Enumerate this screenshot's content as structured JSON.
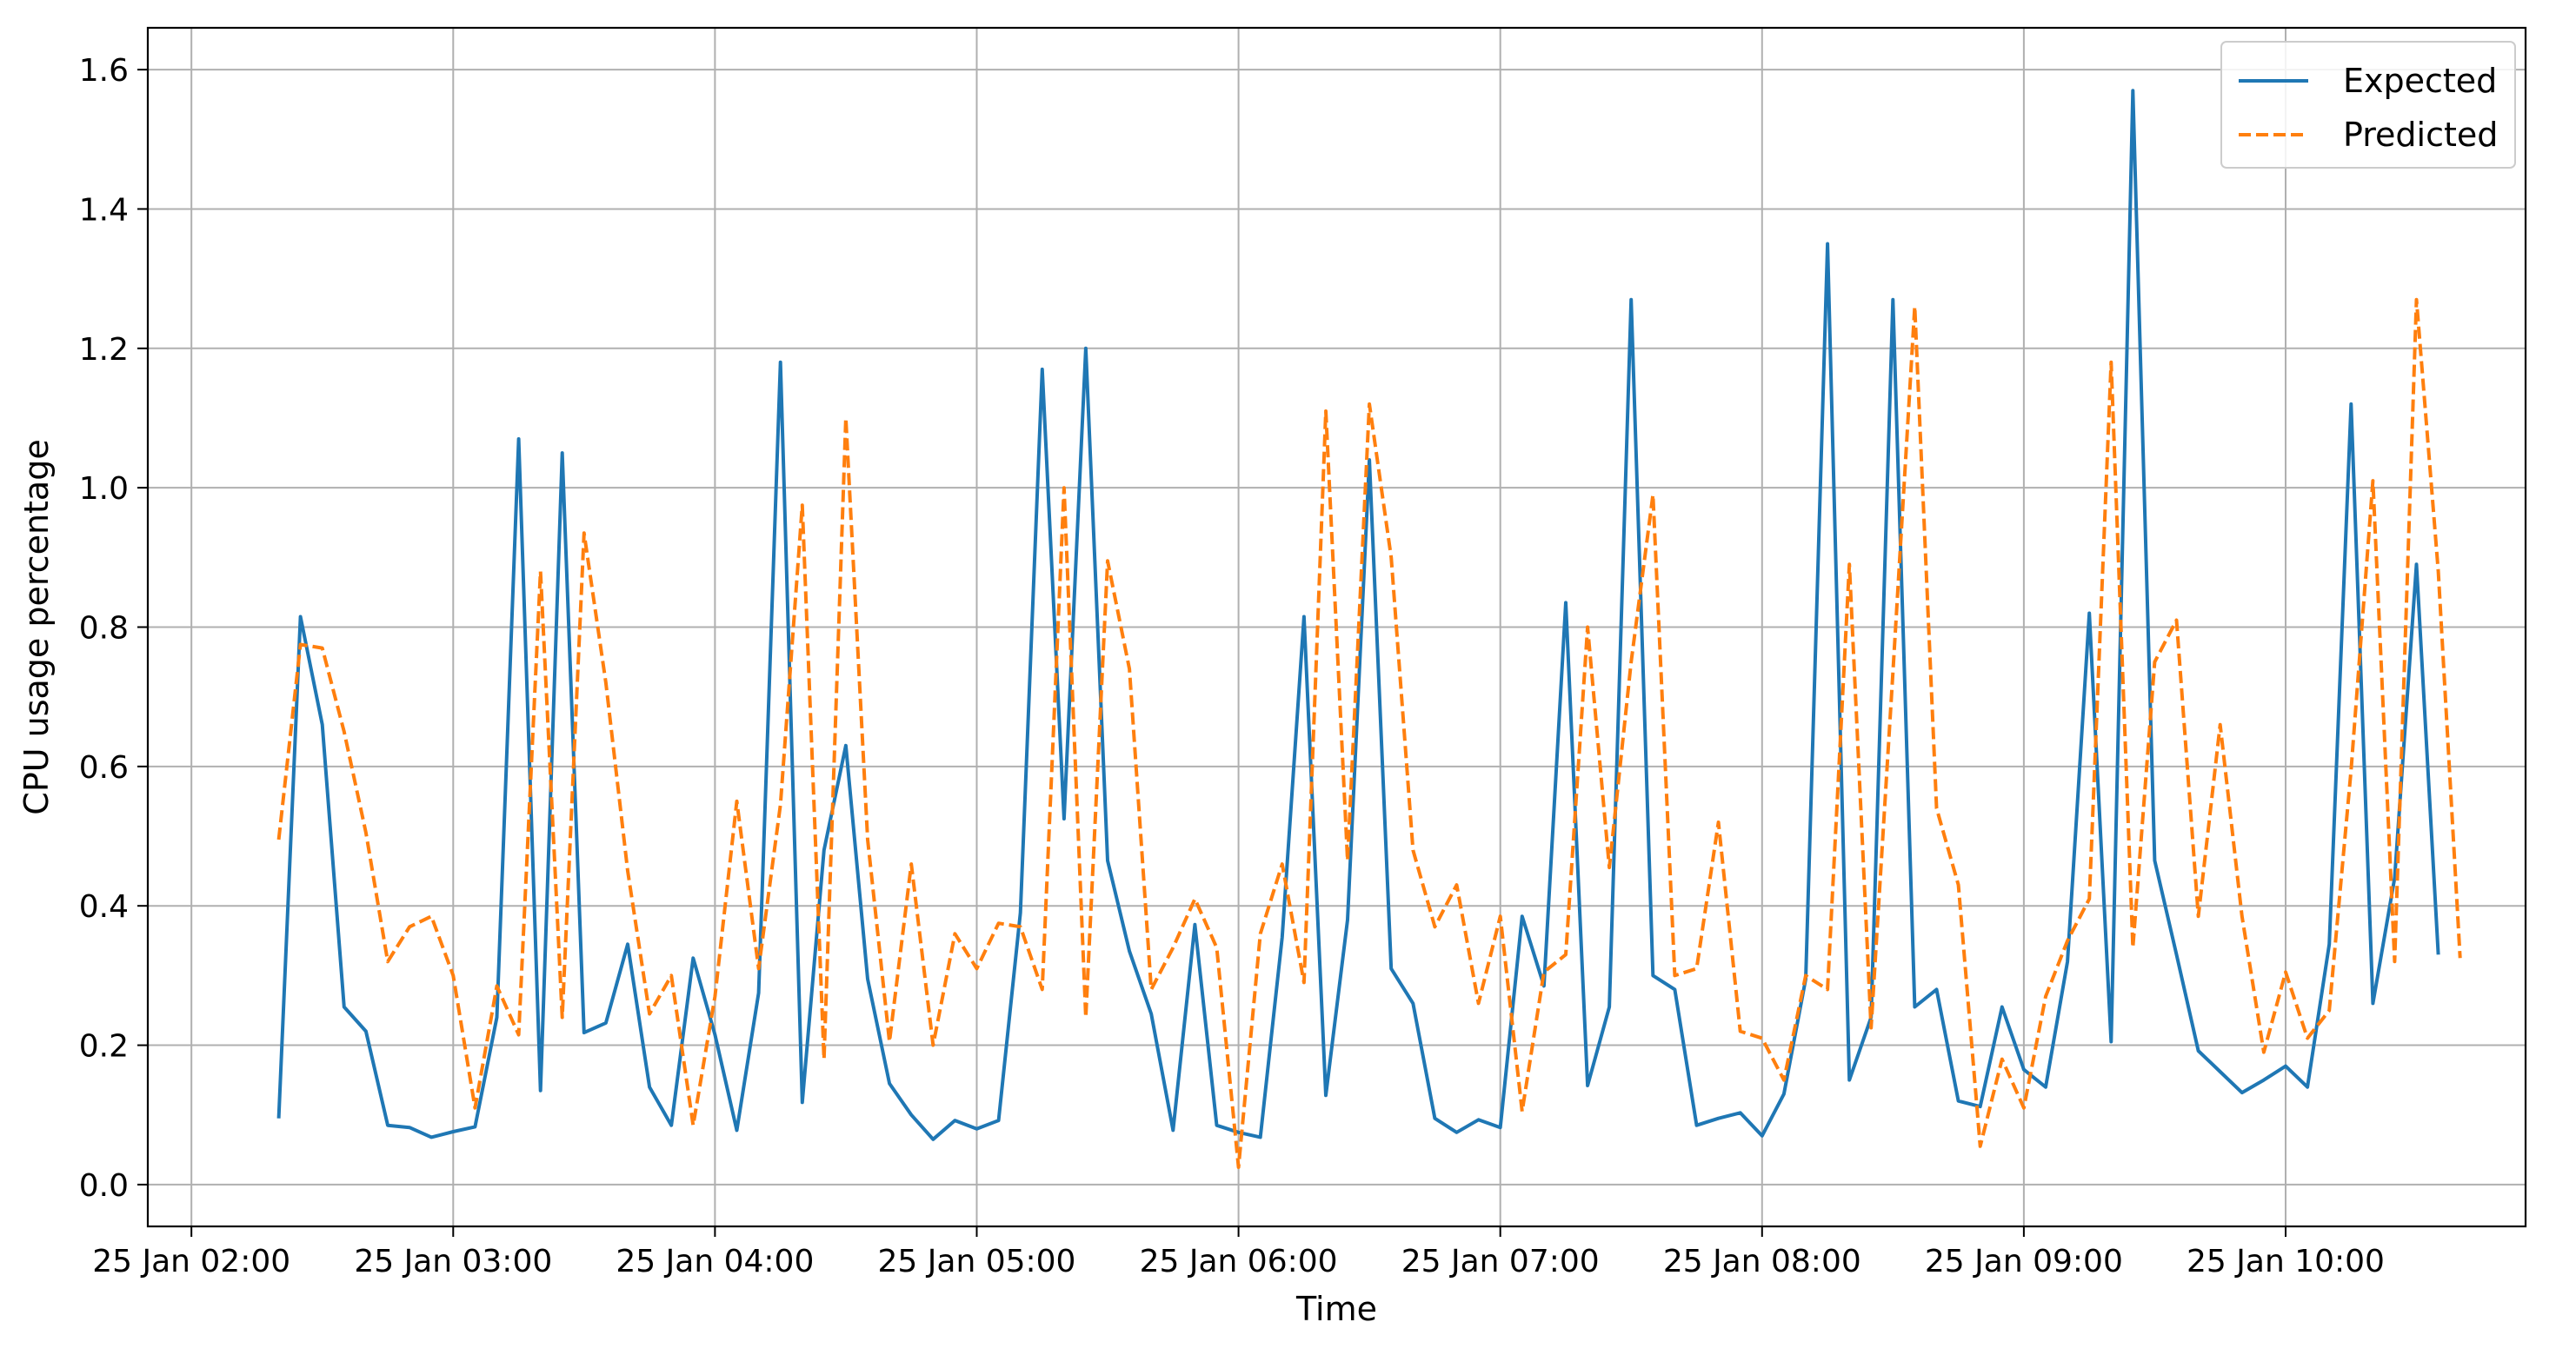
{
  "chart_data": {
    "type": "line",
    "title": "",
    "xlabel": "Time",
    "ylabel": "CPU usage percentage",
    "x_start": "2024-01-25 02:20",
    "x_step_minutes": 5,
    "xlim": [
      "2024-01-25 01:50",
      "2024-01-25 10:55"
    ],
    "ylim": [
      -0.06,
      1.66
    ],
    "yticks": [
      0.0,
      0.2,
      0.4,
      0.6,
      0.8,
      1.0,
      1.2,
      1.4,
      1.6
    ],
    "ytick_labels": [
      "0.0",
      "0.2",
      "0.4",
      "0.6",
      "0.8",
      "1.0",
      "1.2",
      "1.4",
      "1.6"
    ],
    "xticks": [
      "2024-01-25 02:00",
      "2024-01-25 03:00",
      "2024-01-25 04:00",
      "2024-01-25 05:00",
      "2024-01-25 06:00",
      "2024-01-25 07:00",
      "2024-01-25 08:00",
      "2024-01-25 09:00",
      "2024-01-25 10:00"
    ],
    "xtick_labels": [
      "25 Jan 02:00",
      "25 Jan 03:00",
      "25 Jan 04:00",
      "25 Jan 05:00",
      "25 Jan 06:00",
      "25 Jan 07:00",
      "25 Jan 08:00",
      "25 Jan 09:00",
      "25 Jan 10:00"
    ],
    "grid": true,
    "legend_position": "top-right",
    "series": [
      {
        "name": "Expected",
        "color": "#1f77b4",
        "style": "solid",
        "values": [
          0.095,
          0.815,
          0.66,
          0.255,
          0.22,
          0.085,
          0.082,
          0.068,
          0.076,
          0.083,
          0.24,
          1.07,
          0.135,
          1.05,
          0.218,
          0.232,
          0.345,
          0.14,
          0.085,
          0.325,
          0.215,
          0.078,
          0.275,
          1.18,
          0.118,
          0.48,
          0.63,
          0.295,
          0.145,
          0.1,
          0.065,
          0.092,
          0.08,
          0.092,
          0.39,
          1.17,
          0.525,
          1.2,
          0.465,
          0.335,
          0.245,
          0.078,
          0.373,
          0.085,
          0.075,
          0.068,
          0.355,
          0.815,
          0.128,
          0.38,
          1.04,
          0.31,
          0.26,
          0.095,
          0.075,
          0.093,
          0.082,
          0.385,
          0.285,
          0.835,
          0.142,
          0.255,
          1.27,
          0.3,
          0.28,
          0.085,
          0.095,
          0.103,
          0.07,
          0.13,
          0.295,
          1.35,
          0.15,
          0.24,
          1.27,
          0.255,
          0.28,
          0.12,
          0.112,
          0.255,
          0.165,
          0.14,
          0.32,
          0.82,
          0.205,
          1.57,
          0.465,
          0.33,
          0.192,
          0.162,
          0.132,
          0.15,
          0.17,
          0.14,
          0.345,
          1.12,
          0.26,
          0.44,
          0.89,
          0.33
        ]
      },
      {
        "name": "Predicted",
        "color": "#ff7f0e",
        "style": "dashed",
        "values": [
          0.495,
          0.775,
          0.77,
          0.65,
          0.505,
          0.32,
          0.37,
          0.385,
          0.3,
          0.11,
          0.285,
          0.215,
          0.88,
          0.24,
          0.935,
          0.72,
          0.45,
          0.245,
          0.3,
          0.085,
          0.27,
          0.55,
          0.31,
          0.545,
          0.975,
          0.18,
          1.1,
          0.495,
          0.205,
          0.46,
          0.2,
          0.36,
          0.31,
          0.375,
          0.37,
          0.28,
          1.0,
          0.24,
          0.895,
          0.74,
          0.28,
          0.34,
          0.41,
          0.34,
          0.025,
          0.36,
          0.46,
          0.29,
          1.11,
          0.465,
          1.12,
          0.9,
          0.48,
          0.37,
          0.43,
          0.26,
          0.385,
          0.105,
          0.305,
          0.33,
          0.8,
          0.455,
          0.75,
          0.99,
          0.3,
          0.31,
          0.52,
          0.22,
          0.21,
          0.15,
          0.3,
          0.28,
          0.89,
          0.225,
          0.735,
          1.26,
          0.54,
          0.43,
          0.055,
          0.18,
          0.11,
          0.27,
          0.35,
          0.41,
          1.18,
          0.34,
          0.75,
          0.81,
          0.385,
          0.66,
          0.385,
          0.19,
          0.305,
          0.21,
          0.25,
          0.595,
          1.01,
          0.32,
          1.27,
          0.88,
          0.325
        ]
      }
    ]
  }
}
